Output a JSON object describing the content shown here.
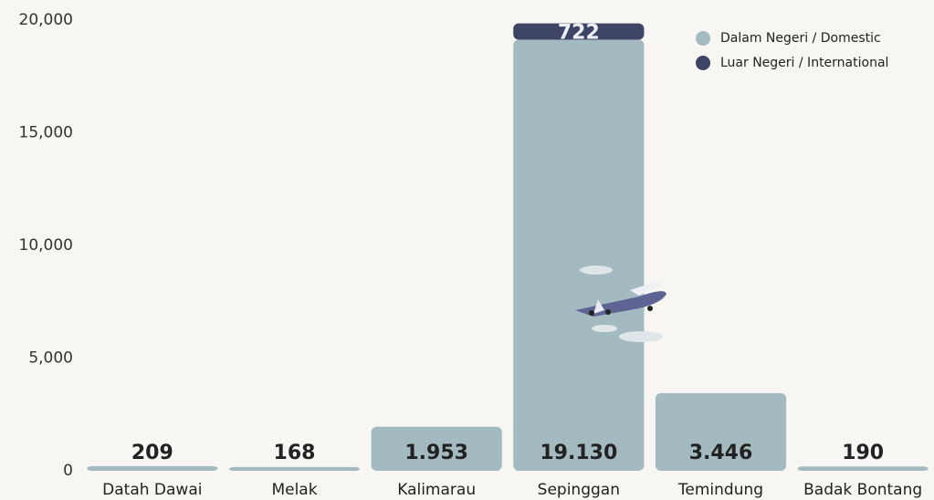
{
  "chart_data": {
    "type": "stacked_bar",
    "categories": [
      "Datah Dawai",
      "Melak",
      "Kalimarau",
      "Sepinggan",
      "Temindung",
      "Badak Bontang"
    ],
    "series": [
      {
        "name": "Dalam Negeri / Domestic",
        "color": "#a3bac0",
        "values": [
          209,
          168,
          1953,
          19130,
          3446,
          190
        ],
        "value_labels": [
          "209",
          "168",
          "1.953",
          "19.130",
          "3.446",
          "190"
        ]
      },
      {
        "name": "Luar Negeri / International",
        "color": "#3e4466",
        "values": [
          null,
          null,
          null,
          722,
          null,
          null
        ],
        "value_labels": [
          null,
          null,
          null,
          "722",
          null,
          null
        ]
      }
    ],
    "ylim": [
      0,
      20000
    ],
    "yticks": [
      0,
      {
        "value": 5000,
        "label": "5,000"
      },
      {
        "value": 10000,
        "label": "10,000"
      },
      {
        "value": 15000,
        "label": "15,000"
      },
      {
        "value": 20000,
        "label": "20,000"
      }
    ],
    "legend": "top-right"
  }
}
